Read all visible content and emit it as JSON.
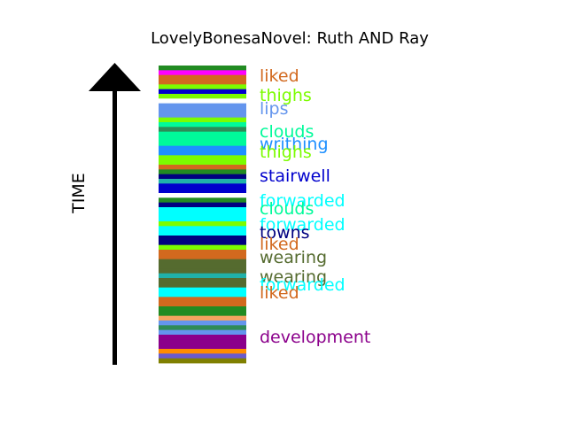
{
  "chart_data": {
    "type": "bar",
    "title": "LovelyBonesaNovel: Ruth AND Ray",
    "ylabel": "TIME",
    "orientation": "vertical-stack",
    "arrow": "up",
    "stripes": [
      {
        "color": "#228B22"
      },
      {
        "color": "#FF00FF"
      },
      {
        "color": "#D2691E"
      },
      {
        "color": "#D2691E"
      },
      {
        "color": "#7CFC00"
      },
      {
        "color": "#0000CD"
      },
      {
        "color": "#7CFC00"
      },
      {
        "color": "#FFFFFF"
      },
      {
        "color": "#6495ED"
      },
      {
        "color": "#6495ED"
      },
      {
        "color": "#6495ED"
      },
      {
        "color": "#7CFC00"
      },
      {
        "color": "#00FA9A"
      },
      {
        "color": "#2E8B57"
      },
      {
        "color": "#00FA9A"
      },
      {
        "color": "#00FA9A"
      },
      {
        "color": "#00FA9A"
      },
      {
        "color": "#1E90FF"
      },
      {
        "color": "#1E90FF"
      },
      {
        "color": "#7CFC00"
      },
      {
        "color": "#7CFC00"
      },
      {
        "color": "#D2691E"
      },
      {
        "color": "#228B22"
      },
      {
        "color": "#000080"
      },
      {
        "color": "#20B2AA"
      },
      {
        "color": "#0000CD"
      },
      {
        "color": "#0000CD"
      },
      {
        "color": "#FFFFFF"
      },
      {
        "color": "#228B22"
      },
      {
        "color": "#000080"
      },
      {
        "color": "#00FFFF"
      },
      {
        "color": "#00FFFF"
      },
      {
        "color": "#00FFFF"
      },
      {
        "color": "#7CFC00"
      },
      {
        "color": "#00FFFF"
      },
      {
        "color": "#00FFFF"
      },
      {
        "color": "#000080"
      },
      {
        "color": "#000080"
      },
      {
        "color": "#7CFC00"
      },
      {
        "color": "#D2691E"
      },
      {
        "color": "#D2691E"
      },
      {
        "color": "#556B2F"
      },
      {
        "color": "#556B2F"
      },
      {
        "color": "#556B2F"
      },
      {
        "color": "#20B2AA"
      },
      {
        "color": "#556B2F"
      },
      {
        "color": "#556B2F"
      },
      {
        "color": "#00FFFF"
      },
      {
        "color": "#00FFFF"
      },
      {
        "color": "#D2691E"
      },
      {
        "color": "#D2691E"
      },
      {
        "color": "#228B22"
      },
      {
        "color": "#228B22"
      },
      {
        "color": "#F4A460"
      },
      {
        "color": "#6495ED"
      },
      {
        "color": "#2E8B57"
      },
      {
        "color": "#6495ED"
      },
      {
        "color": "#8B008B"
      },
      {
        "color": "#8B008B"
      },
      {
        "color": "#8B008B"
      },
      {
        "color": "#FF8C00"
      },
      {
        "color": "#6A5ACD"
      },
      {
        "color": "#808000"
      }
    ],
    "words": [
      {
        "text": "liked",
        "color": "#D2691E"
      },
      {
        "text": "thighs",
        "color": "#7CFC00"
      },
      {
        "text": "lips",
        "color": "#6495ED"
      },
      {
        "text": "clouds",
        "color": "#00FA9A"
      },
      {
        "text": "writhing",
        "color": "#1E90FF"
      },
      {
        "text": "thighs",
        "color": "#7CFC00"
      },
      {
        "text": "stairwell",
        "color": "#0000CD"
      },
      {
        "text": "forwarded",
        "color": "#00FFFF"
      },
      {
        "text": "clouds",
        "color": "#00FA9A"
      },
      {
        "text": "forwarded",
        "color": "#00FFFF"
      },
      {
        "text": "towns",
        "color": "#000080"
      },
      {
        "text": "liked",
        "color": "#D2691E"
      },
      {
        "text": "wearing",
        "color": "#556B2F"
      },
      {
        "text": "wearing",
        "color": "#556B2F"
      },
      {
        "text": "forwarded",
        "color": "#00FFFF"
      },
      {
        "text": "liked",
        "color": "#D2691E"
      },
      {
        "text": "development",
        "color": "#8B008B"
      }
    ]
  }
}
